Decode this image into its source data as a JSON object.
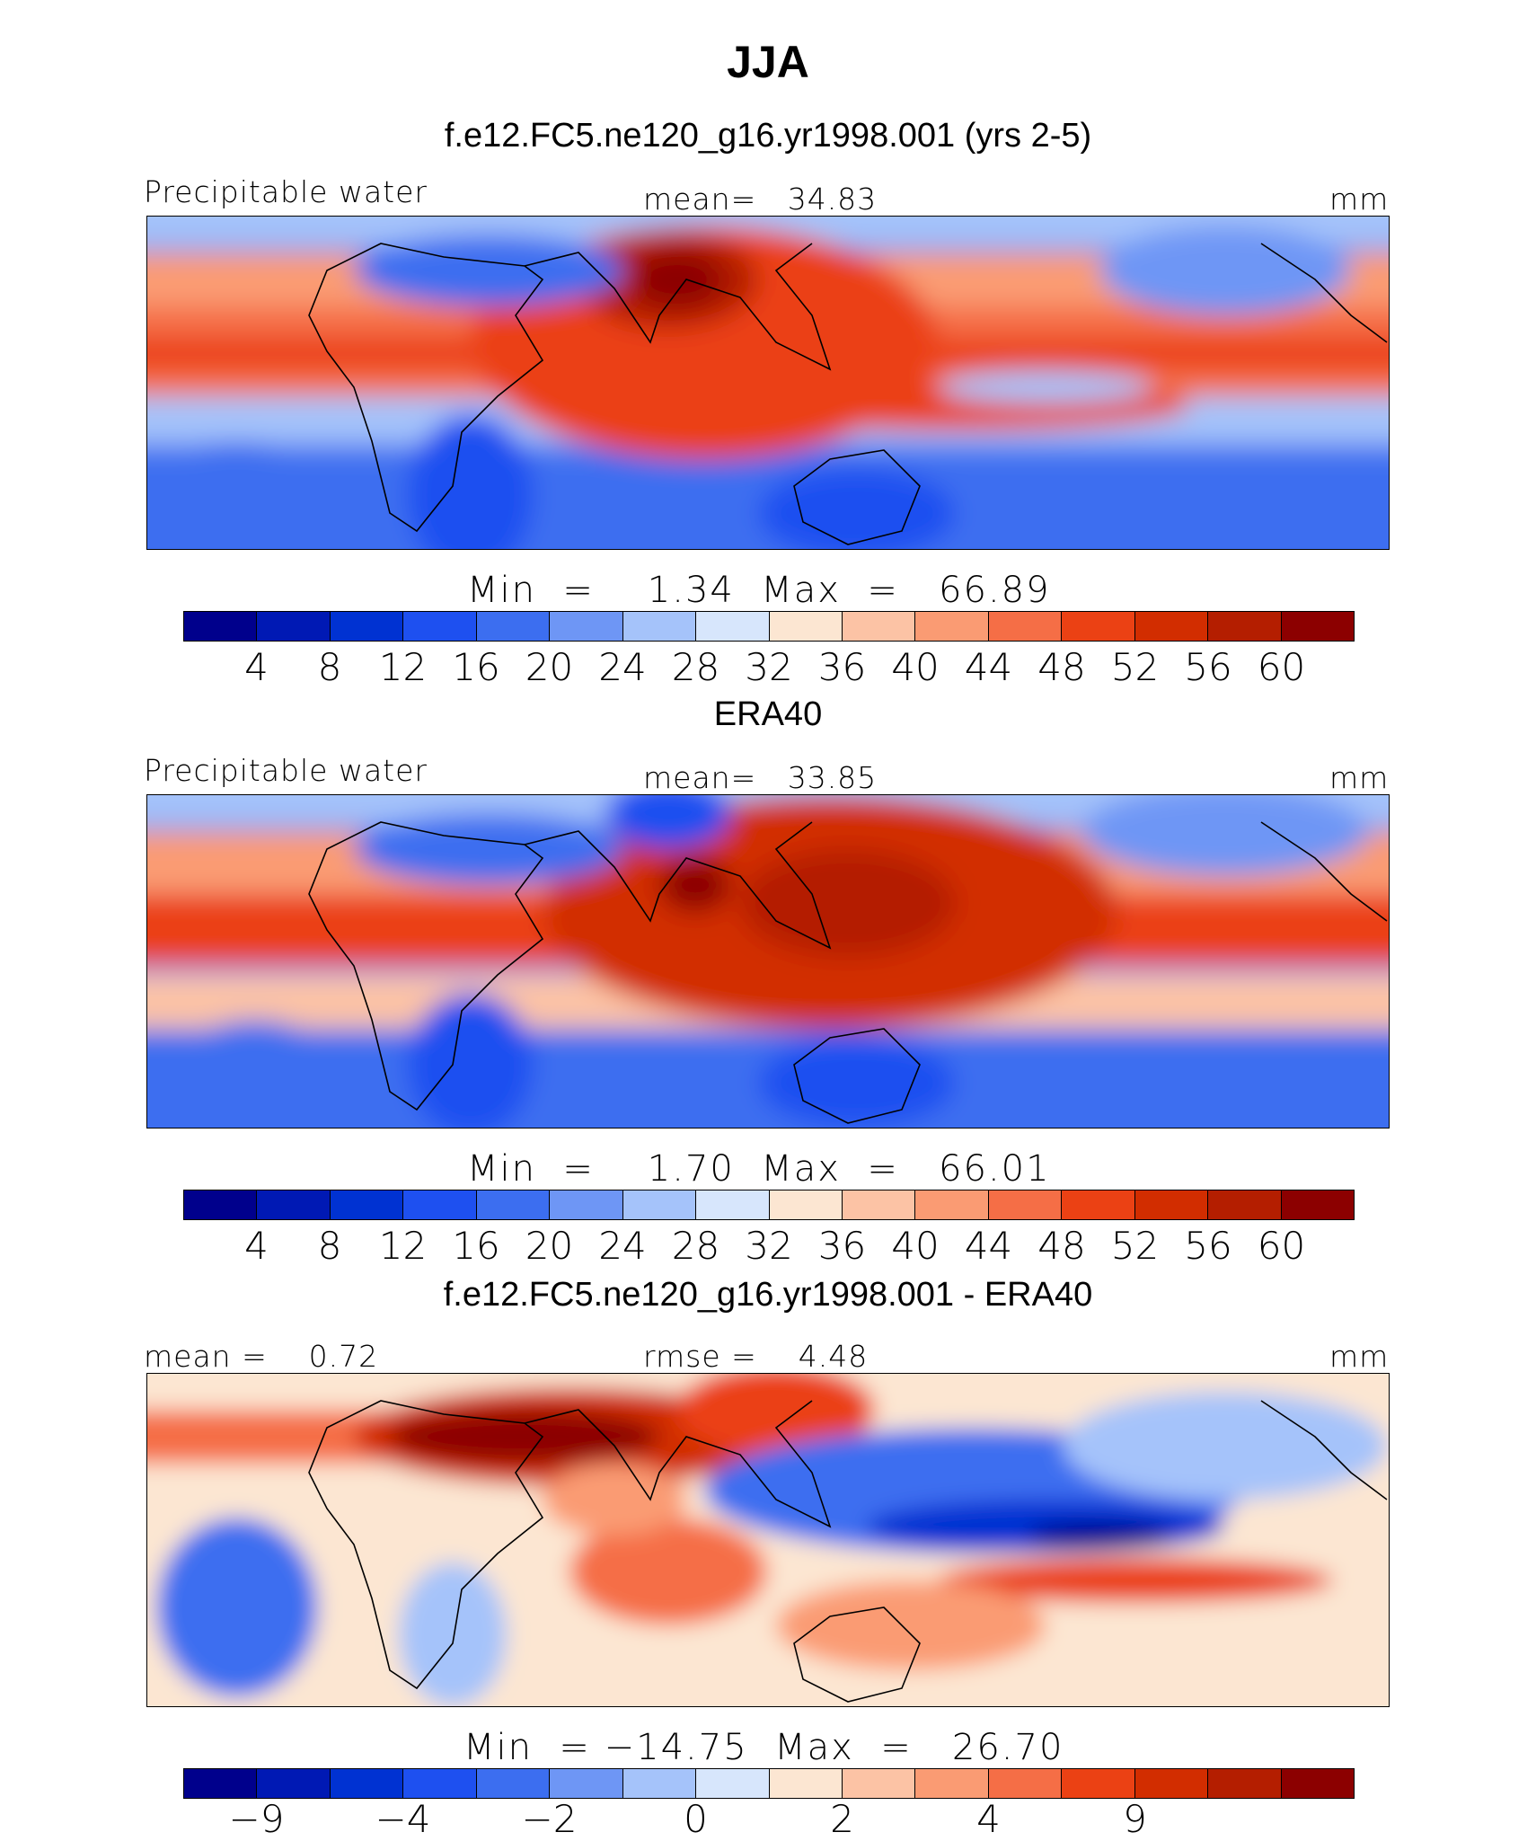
{
  "title": "JJA",
  "panels": [
    {
      "id": "model",
      "subtitle": "f.e12.FC5.ne120_g16.yr1998.001 (yrs 2-5)",
      "left_label": "Precipitable water",
      "center_label": "mean=   34.83",
      "units": "mm",
      "minmax": "Min  =    1.34  Max  =   66.89",
      "colorbar": {
        "colors": [
          "#00008c",
          "#0019b4",
          "#0032d2",
          "#1e50f0",
          "#3c6ef0",
          "#6e96f5",
          "#a5c3fa",
          "#d7e6fc",
          "#fce6d2",
          "#fcc3a5",
          "#fa9b73",
          "#f56e46",
          "#eb4114",
          "#d22d00",
          "#b41e00",
          "#8c0000"
        ],
        "ticks": [
          "4",
          "8",
          "12",
          "16",
          "20",
          "24",
          "28",
          "32",
          "36",
          "40",
          "44",
          "48",
          "52",
          "56",
          "60"
        ]
      }
    },
    {
      "id": "obs",
      "subtitle": "ERA40",
      "left_label": "Precipitable water",
      "center_label": "mean=   33.85",
      "units": "mm",
      "minmax": "Min  =    1.70  Max  =   66.01",
      "colorbar": {
        "colors": [
          "#00008c",
          "#0019b4",
          "#0032d2",
          "#1e50f0",
          "#3c6ef0",
          "#6e96f5",
          "#a5c3fa",
          "#d7e6fc",
          "#fce6d2",
          "#fcc3a5",
          "#fa9b73",
          "#f56e46",
          "#eb4114",
          "#d22d00",
          "#b41e00",
          "#8c0000"
        ],
        "ticks": [
          "4",
          "8",
          "12",
          "16",
          "20",
          "24",
          "28",
          "32",
          "36",
          "40",
          "44",
          "48",
          "52",
          "56",
          "60"
        ]
      }
    },
    {
      "id": "diff",
      "subtitle": "f.e12.FC5.ne120_g16.yr1998.001 - ERA40",
      "left_label": "mean =    0.72",
      "center_label": "rmse =    4.48",
      "units": "mm",
      "minmax": "Min  = −14.75  Max  =   26.70",
      "colorbar": {
        "colors": [
          "#00008c",
          "#0019b4",
          "#0032d2",
          "#1e50f0",
          "#3c6ef0",
          "#6e96f5",
          "#a5c3fa",
          "#d7e6fc",
          "#fce6d2",
          "#fcc3a5",
          "#fa9b73",
          "#f56e46",
          "#eb4114",
          "#d22d00",
          "#b41e00",
          "#8c0000"
        ],
        "ticks": [
          "−9",
          "−4",
          "−2",
          "0",
          "2",
          "4",
          "9"
        ],
        "tick_boundaries": [
          1,
          3,
          5,
          7,
          9,
          11,
          13
        ]
      }
    }
  ]
}
